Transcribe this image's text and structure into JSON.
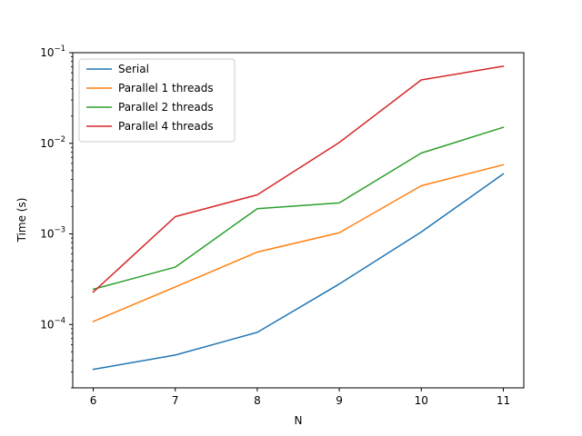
{
  "chart_data": {
    "type": "line",
    "xlabel": "N",
    "ylabel": "Time (s)",
    "x": [
      6,
      7,
      8,
      9,
      10,
      11
    ],
    "xlim": [
      5.75,
      11.25
    ],
    "ylim": [
      2e-05,
      0.1
    ],
    "yscale": "log",
    "grid": false,
    "legend_position": "top-left",
    "x_ticks": [
      6,
      7,
      8,
      9,
      10,
      11
    ],
    "y_ticks": [
      {
        "value": 0.0001,
        "base": "10",
        "exp": "−4"
      },
      {
        "value": 0.001,
        "base": "10",
        "exp": "−3"
      },
      {
        "value": 0.01,
        "base": "10",
        "exp": "−2"
      },
      {
        "value": 0.1,
        "base": "10",
        "exp": "−1"
      }
    ],
    "series": [
      {
        "name": "Serial",
        "color": "#1f77b4",
        "values": [
          3.2e-05,
          4.6e-05,
          8.2e-05,
          0.00028,
          0.00105,
          0.0046
        ]
      },
      {
        "name": "Parallel 1 threads",
        "color": "#ff7f0e",
        "values": [
          0.000108,
          0.00026,
          0.00063,
          0.00103,
          0.0034,
          0.0058
        ]
      },
      {
        "name": "Parallel 2 threads",
        "color": "#2ca02c",
        "values": [
          0.000245,
          0.00043,
          0.0019,
          0.0022,
          0.0078,
          0.015
        ]
      },
      {
        "name": "Parallel 4 threads",
        "color": "#d62728",
        "values": [
          0.000228,
          0.00155,
          0.0027,
          0.0102,
          0.05,
          0.071
        ]
      }
    ]
  }
}
